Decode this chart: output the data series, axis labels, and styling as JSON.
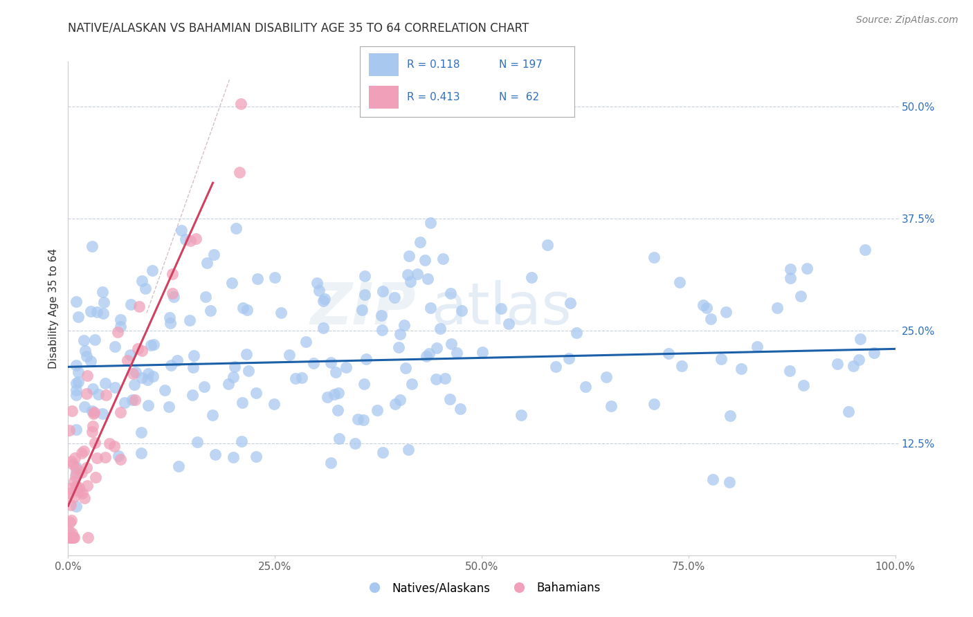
{
  "title": "NATIVE/ALASKAN VS BAHAMIAN DISABILITY AGE 35 TO 64 CORRELATION CHART",
  "source_text": "Source: ZipAtlas.com",
  "ylabel": "Disability Age 35 to 64",
  "xlim": [
    0.0,
    1.0
  ],
  "ylim": [
    0.0,
    0.55
  ],
  "xticks": [
    0.0,
    0.25,
    0.5,
    0.75,
    1.0
  ],
  "xticklabels": [
    "0.0%",
    "25.0%",
    "50.0%",
    "75.0%",
    "100.0%"
  ],
  "yticks": [
    0.125,
    0.25,
    0.375,
    0.5
  ],
  "yticklabels": [
    "12.5%",
    "25.0%",
    "37.5%",
    "50.0%"
  ],
  "grid_color": "#c8d0dc",
  "blue_color": "#a8c8f0",
  "pink_color": "#f0a0b8",
  "blue_edge_color": "#7098c8",
  "pink_edge_color": "#d06080",
  "blue_line_color": "#1a5fa8",
  "pink_line_color": "#d04060",
  "ref_line_color": "#d0b8c8",
  "ytick_color": "#3070c0",
  "xtick_color": "#606060",
  "title_color": "#303030",
  "source_color": "#808080",
  "legend_r_blue": "0.118",
  "legend_n_blue": "197",
  "legend_r_pink": "0.413",
  "legend_n_pink": "62",
  "blue_line_x0": 0.0,
  "blue_line_x1": 1.0,
  "blue_line_y0": 0.21,
  "blue_line_y1": 0.23,
  "pink_line_x0": 0.0,
  "pink_line_x1": 0.175,
  "pink_line_y0": 0.055,
  "pink_line_y1": 0.415,
  "ref_line_x0": 0.095,
  "ref_line_x1": 0.195,
  "ref_line_y0": 0.27,
  "ref_line_y1": 0.53
}
